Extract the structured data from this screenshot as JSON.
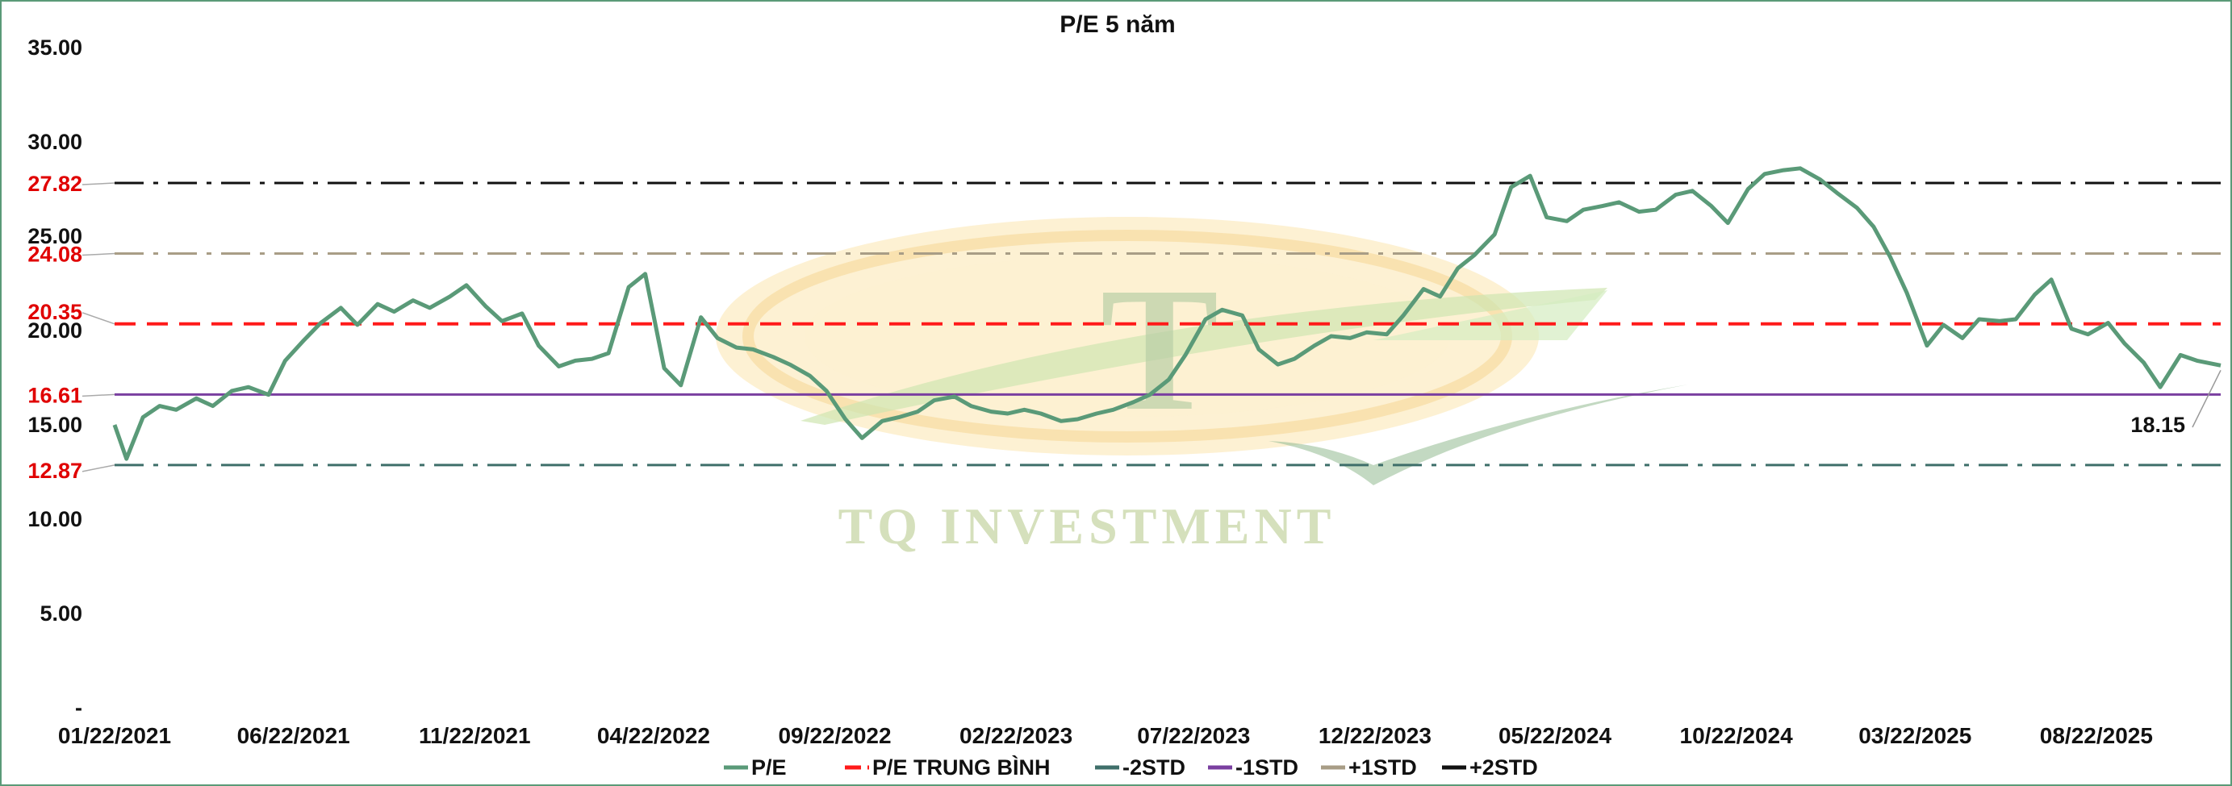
{
  "chart_data": {
    "type": "line",
    "title": "P/E 5 năm",
    "xlabel": "",
    "ylabel": "",
    "ylim": [
      0,
      35
    ],
    "y_ticks": [
      "-",
      "5.00",
      "10.00",
      "15.00",
      "20.00",
      "25.00",
      "30.00",
      "35.00"
    ],
    "y_tick_values": [
      0,
      5,
      10,
      15,
      20,
      25,
      30,
      35
    ],
    "x_ticks": [
      "01/22/2021",
      "06/22/2021",
      "11/22/2021",
      "04/22/2022",
      "09/22/2022",
      "02/22/2023",
      "07/22/2023",
      "12/22/2023",
      "05/22/2024",
      "10/22/2024",
      "03/22/2025",
      "08/22/2025"
    ],
    "x_range": [
      "01/22/2021",
      "12/05/2025"
    ],
    "grid": false,
    "legend_position": "bottom",
    "series": [
      {
        "name": "P/E",
        "color": "#5a9a78",
        "x": [
          "01/22/2021",
          "02/01/2021",
          "02/15/2021",
          "03/01/2021",
          "03/15/2021",
          "04/01/2021",
          "04/15/2021",
          "05/01/2021",
          "05/15/2021",
          "06/01/2021",
          "06/15/2021",
          "07/01/2021",
          "07/15/2021",
          "08/01/2021",
          "08/15/2021",
          "09/01/2021",
          "09/15/2021",
          "10/01/2021",
          "10/15/2021",
          "11/01/2021",
          "11/15/2021",
          "12/01/2021",
          "12/15/2021",
          "01/01/2022",
          "01/15/2022",
          "02/01/2022",
          "02/15/2022",
          "03/01/2022",
          "03/15/2022",
          "04/01/2022",
          "04/15/2022",
          "05/01/2022",
          "05/15/2022",
          "06/01/2022",
          "06/15/2022",
          "07/01/2022",
          "07/15/2022",
          "08/01/2022",
          "08/15/2022",
          "09/01/2022",
          "09/15/2022",
          "10/01/2022",
          "10/15/2022",
          "11/01/2022",
          "11/15/2022",
          "12/01/2022",
          "12/15/2022",
          "01/01/2023",
          "01/15/2023",
          "02/01/2023",
          "02/15/2023",
          "03/01/2023",
          "03/15/2023",
          "04/01/2023",
          "04/15/2023",
          "05/01/2023",
          "05/15/2023",
          "06/01/2023",
          "06/15/2023",
          "07/01/2023",
          "07/15/2023",
          "08/01/2023",
          "08/15/2023",
          "09/01/2023",
          "09/15/2023",
          "10/01/2023",
          "10/15/2023",
          "11/01/2023",
          "11/15/2023",
          "12/01/2023",
          "12/15/2023",
          "01/01/2024",
          "01/15/2024",
          "02/01/2024",
          "02/15/2024",
          "03/01/2024",
          "03/15/2024",
          "04/01/2024",
          "04/15/2024",
          "05/01/2024",
          "05/15/2024",
          "06/01/2024",
          "06/15/2024",
          "07/01/2024",
          "07/15/2024",
          "08/01/2024",
          "08/15/2024",
          "09/01/2024",
          "09/15/2024",
          "10/01/2024",
          "10/15/2024",
          "11/01/2024",
          "11/15/2024",
          "12/01/2024",
          "12/15/2024",
          "01/01/2025",
          "01/15/2025",
          "02/01/2025",
          "02/15/2025",
          "03/01/2025",
          "03/15/2025",
          "04/01/2025",
          "04/15/2025",
          "05/01/2025",
          "05/15/2025",
          "06/01/2025",
          "06/15/2025",
          "07/01/2025",
          "07/15/2025",
          "08/01/2025",
          "08/15/2025",
          "09/01/2025",
          "09/15/2025",
          "10/01/2025",
          "10/15/2025",
          "11/01/2025",
          "11/15/2025",
          "12/05/2025"
        ],
        "values": [
          15.0,
          13.2,
          15.4,
          16.0,
          15.8,
          16.4,
          16.0,
          16.8,
          17.0,
          16.6,
          18.4,
          19.5,
          20.4,
          21.2,
          20.3,
          21.4,
          21.0,
          21.6,
          21.2,
          21.8,
          22.4,
          21.3,
          20.5,
          20.9,
          19.2,
          18.1,
          18.4,
          18.5,
          18.8,
          22.3,
          23.0,
          18.0,
          17.1,
          20.7,
          19.6,
          19.1,
          19.0,
          18.6,
          18.2,
          17.6,
          16.8,
          15.3,
          14.3,
          15.2,
          15.4,
          15.7,
          16.3,
          16.5,
          16.0,
          15.7,
          15.6,
          15.8,
          15.6,
          15.2,
          15.3,
          15.6,
          15.8,
          16.2,
          16.6,
          17.4,
          18.7,
          20.6,
          21.1,
          20.8,
          19.0,
          18.2,
          18.5,
          19.2,
          19.7,
          19.6,
          19.9,
          19.8,
          20.8,
          22.2,
          21.8,
          23.3,
          24.0,
          25.1,
          27.6,
          28.2,
          26.0,
          25.8,
          26.4,
          26.6,
          26.8,
          26.3,
          26.4,
          27.2,
          27.4,
          26.6,
          25.7,
          27.5,
          28.3,
          28.5,
          28.6,
          28.0,
          27.3,
          26.5,
          25.5,
          23.9,
          22.0,
          19.2,
          20.3,
          19.6,
          20.6,
          20.5,
          20.6,
          21.9,
          22.7,
          20.1,
          19.8,
          20.4,
          19.3,
          18.3,
          17.0,
          18.7,
          18.4,
          18.15
        ]
      },
      {
        "name": "P/E TRUNG BÌNH",
        "color": "#ff1a1a",
        "value": 20.35,
        "label": "20.35"
      },
      {
        "name": "-2STD",
        "color": "#3f6f6a",
        "value": 12.87,
        "label": "12.87"
      },
      {
        "name": "-1STD",
        "color": "#7a3fa0",
        "value": 16.61,
        "label": "16.61"
      },
      {
        "name": "+1STD",
        "color": "#a89d86",
        "value": 24.08,
        "label": "24.08"
      },
      {
        "name": "+2STD",
        "color": "#111111",
        "value": 27.82,
        "label": "27.82"
      }
    ],
    "annotations": [
      {
        "text": "18.15",
        "target": "last point of P/E"
      }
    ]
  },
  "watermark": {
    "logo_letter": "T",
    "text": "TQ INVESTMENT"
  }
}
